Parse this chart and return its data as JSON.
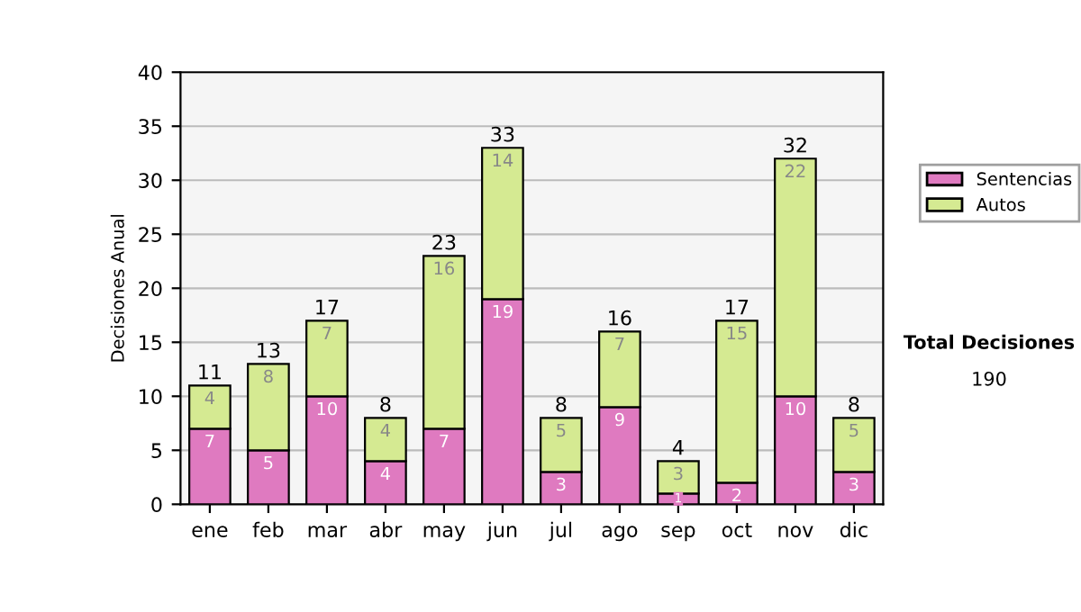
{
  "chart_data": {
    "type": "bar",
    "stacked": true,
    "ylabel": "Decisiones Anual",
    "categories": [
      "ene",
      "feb",
      "mar",
      "abr",
      "may",
      "jun",
      "jul",
      "ago",
      "sep",
      "oct",
      "nov",
      "dic"
    ],
    "series": [
      {
        "name": "Sentencias",
        "color": "#df7ac0",
        "values": [
          7,
          5,
          10,
          4,
          7,
          19,
          3,
          9,
          1,
          2,
          10,
          3
        ]
      },
      {
        "name": "Autos",
        "color": "#d5ea92",
        "values": [
          4,
          8,
          7,
          4,
          16,
          14,
          5,
          7,
          3,
          15,
          22,
          5
        ]
      }
    ],
    "totals": [
      "11",
      "13",
      "17",
      "8",
      "23",
      "33",
      "8",
      "16",
      "4",
      "17",
      "32",
      "8"
    ],
    "data_labels": true,
    "ylim": [
      0,
      40
    ],
    "yticks": [
      0,
      5,
      10,
      15,
      20,
      25,
      30,
      35,
      40
    ],
    "grid": "y",
    "legend": "right",
    "annotations": [
      "Total Decisiones",
      "190"
    ]
  }
}
